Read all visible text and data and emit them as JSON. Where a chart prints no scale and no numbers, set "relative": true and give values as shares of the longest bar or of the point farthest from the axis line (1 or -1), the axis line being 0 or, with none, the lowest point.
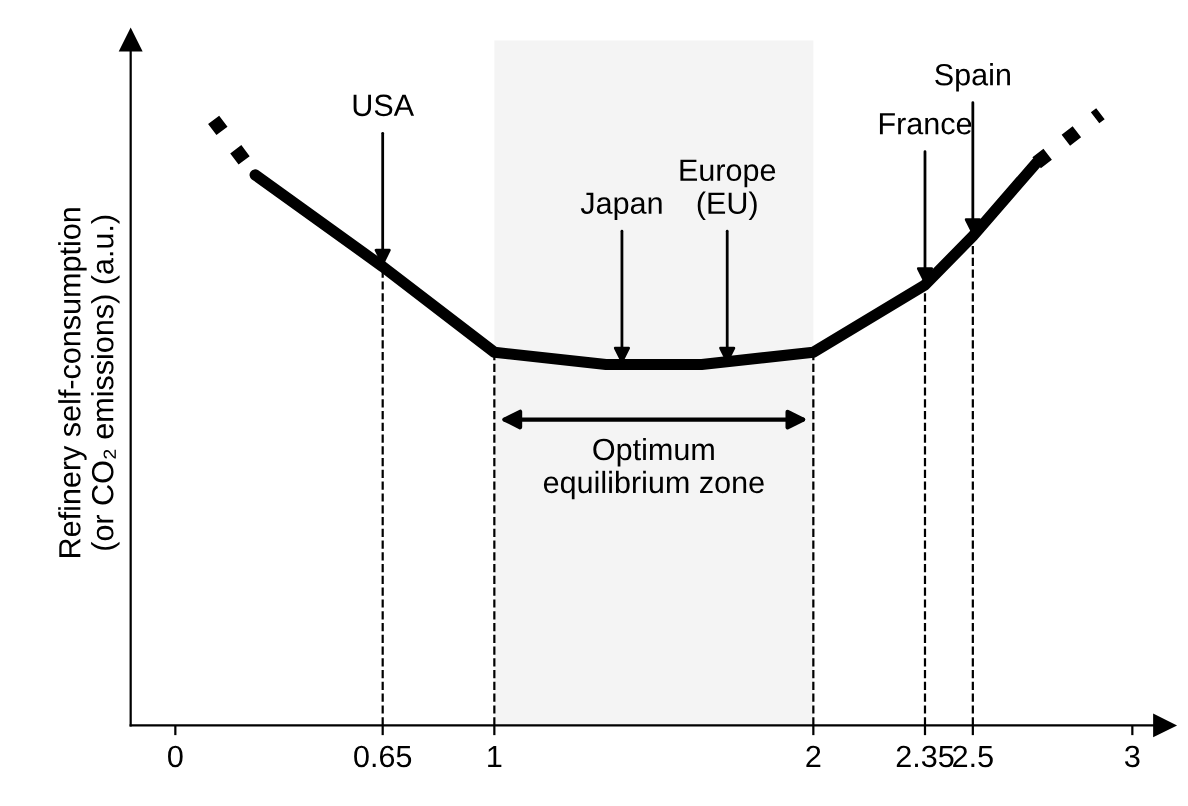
{
  "chart_data": {
    "type": "line",
    "relative": true,
    "ylabel": "Refinery self-consumption\n(or CO₂ emissions) (a.u.)",
    "xlim": [
      -0.14,
      3.1
    ],
    "xticks": [
      0,
      0.65,
      1,
      2,
      2.35,
      2.5,
      3
    ],
    "series": [
      {
        "color": "#000000",
        "line_style": "dotted",
        "x": [
          0.12,
          0.25
        ],
        "values": [
          0.99,
          0.9
        ]
      },
      {
        "color": "#000000",
        "line_style": "solid",
        "x": [
          0.25,
          0.65,
          1,
          1.35,
          1.65,
          2,
          2.35,
          2.5,
          2.7
        ],
        "values": [
          0.9,
          0.75,
          0.61,
          0.59,
          0.59,
          0.61,
          0.72,
          0.8,
          0.92
        ]
      },
      {
        "color": "#000000",
        "line_style": "dotted",
        "x": [
          2.7,
          2.9
        ],
        "values": [
          0.92,
          1.0
        ]
      }
    ],
    "ref_lines": [
      {
        "axis": "x",
        "value": 0.65,
        "line_style": "dashed",
        "color": "#000000"
      },
      {
        "axis": "x",
        "value": 1,
        "line_style": "dashed",
        "color": "#000000"
      },
      {
        "axis": "x",
        "value": 2,
        "line_style": "dashed",
        "color": "#000000"
      },
      {
        "axis": "x",
        "value": 2.35,
        "line_style": "dashed",
        "color": "#000000"
      },
      {
        "axis": "x",
        "value": 2.5,
        "line_style": "dashed",
        "color": "#000000"
      }
    ],
    "bands": [
      {
        "axis": "x",
        "from": 1,
        "to": 2,
        "label": "Optimum\nequilibrium zone",
        "color": "#f4f4f4"
      }
    ],
    "annotations": [
      {
        "text": "USA",
        "x": 0.65,
        "y": 0.75
      },
      {
        "text": "Japan",
        "x": 1.4,
        "y": 0.59
      },
      {
        "text": "Europe\n(EU)",
        "x": 1.73,
        "y": 0.59
      },
      {
        "text": "France",
        "x": 2.35,
        "y": 0.72
      },
      {
        "text": "Spain",
        "x": 2.5,
        "y": 0.8
      }
    ],
    "grid": false,
    "legend": false
  }
}
